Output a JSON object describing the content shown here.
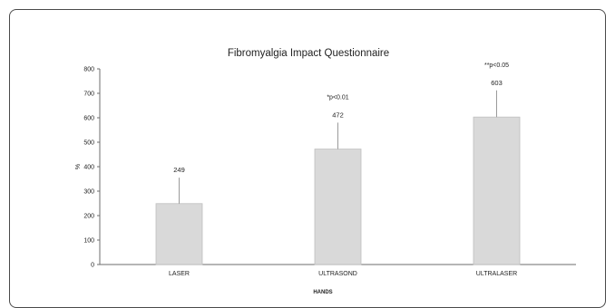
{
  "chart_data": {
    "type": "bar",
    "title": "Fibromyalgia Impact Questionnaire",
    "xlabel": "HANDS",
    "ylabel": "%",
    "ylim": [
      0,
      800
    ],
    "yticks": [
      0,
      100,
      200,
      300,
      400,
      500,
      600,
      700,
      800
    ],
    "categories": [
      "LASER",
      "ULTRASOND",
      "ULTRALASER"
    ],
    "values": [
      249,
      472,
      603
    ],
    "error_upper": [
      355,
      580,
      712
    ],
    "value_labels": [
      "249",
      "472",
      "603"
    ],
    "annotations": [
      "",
      "*p<0.01",
      "**p<0.05"
    ],
    "grid": false,
    "colors": {
      "bar_fill": "#d9d9d9",
      "bar_stroke": "#bfbfbf",
      "axis": "#6e6e6e",
      "error": "#9a9a9a"
    }
  }
}
